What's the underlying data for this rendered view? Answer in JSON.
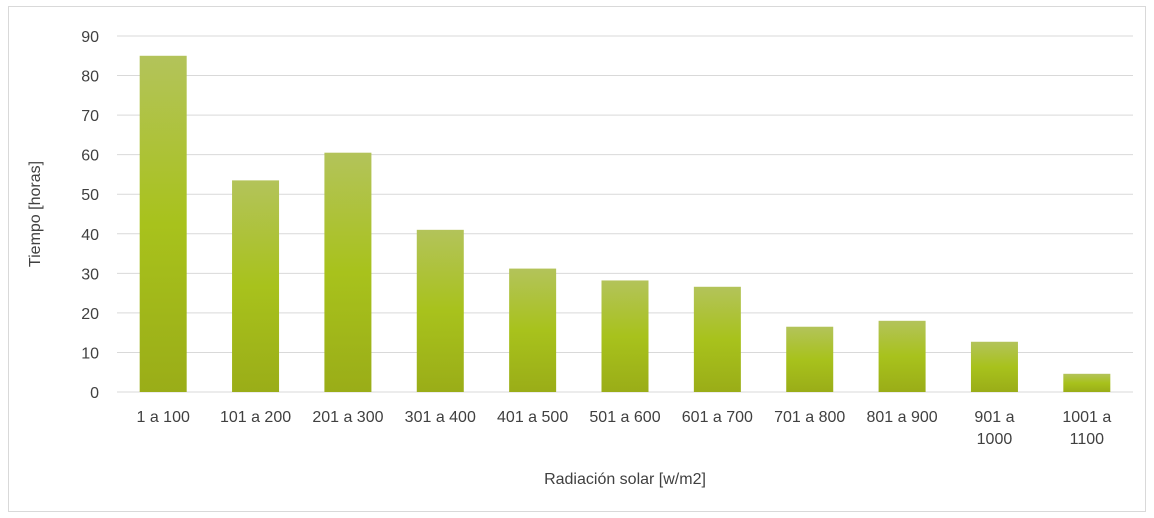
{
  "chart_data": {
    "type": "bar",
    "title": "",
    "xlabel": "Radiación solar [w/m2]",
    "ylabel": "Tiempo [horas]",
    "categories": [
      [
        "1 a 100"
      ],
      [
        "101 a 200"
      ],
      [
        "201 a 300"
      ],
      [
        "301 a 400"
      ],
      [
        "401 a 500"
      ],
      [
        "501 a 600"
      ],
      [
        "601 a 700"
      ],
      [
        "701 a 800"
      ],
      [
        "801 a 900"
      ],
      [
        "901 a",
        "1000"
      ],
      [
        "1001 a",
        "1100"
      ]
    ],
    "values": [
      85,
      53.5,
      60.5,
      41,
      31.2,
      28.2,
      26.6,
      16.5,
      18,
      12.7,
      4.6
    ],
    "ylim": [
      0,
      90
    ],
    "yticks": [
      0,
      10,
      20,
      30,
      40,
      50,
      60,
      70,
      80,
      90
    ],
    "grid": true,
    "legend": "none",
    "colors": {
      "bar_top": "#b3c35a",
      "bar_mid": "#a8c21c",
      "bar_bottom": "#9aad18",
      "grid": "#d9d9d9",
      "text": "#404040"
    }
  }
}
